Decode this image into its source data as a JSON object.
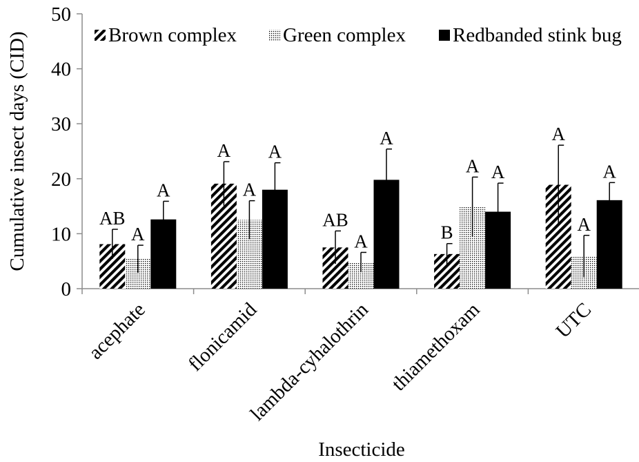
{
  "chart_data": {
    "type": "bar",
    "xlabel": "Insecticide",
    "ylabel": "Cumulative insect days (CID)",
    "ylim": [
      0,
      50
    ],
    "yticks": [
      0,
      10,
      20,
      30,
      40,
      50
    ],
    "grid": false,
    "legend_position": "top",
    "categories": [
      "acephate",
      "flonicamid",
      "lambda-cyhalothrin",
      "thiamethoxam",
      "UTC"
    ],
    "series": [
      {
        "name": "Brown complex",
        "pattern": "diagonal-hatch",
        "color": "#000000",
        "values": [
          8.1,
          19.1,
          7.5,
          6.3,
          18.9
        ],
        "errors": [
          2.7,
          4.0,
          3.0,
          1.9,
          7.2
        ],
        "letters": [
          "AB",
          "A",
          "AB",
          "B",
          "A"
        ]
      },
      {
        "name": "Green complex",
        "pattern": "dots",
        "color": "#000000",
        "values": [
          5.4,
          12.5,
          4.8,
          14.9,
          5.9
        ],
        "errors": [
          2.5,
          3.5,
          1.8,
          5.4,
          3.8
        ],
        "letters": [
          "A",
          "A",
          "A",
          "A",
          "A"
        ]
      },
      {
        "name": "Redbanded stink bug",
        "pattern": "solid",
        "color": "#000000",
        "values": [
          12.6,
          18.0,
          19.8,
          14.0,
          16.1
        ],
        "errors": [
          3.3,
          4.9,
          5.6,
          5.2,
          3.2
        ],
        "letters": [
          "A",
          "A",
          "A",
          "A",
          "A"
        ]
      }
    ]
  }
}
